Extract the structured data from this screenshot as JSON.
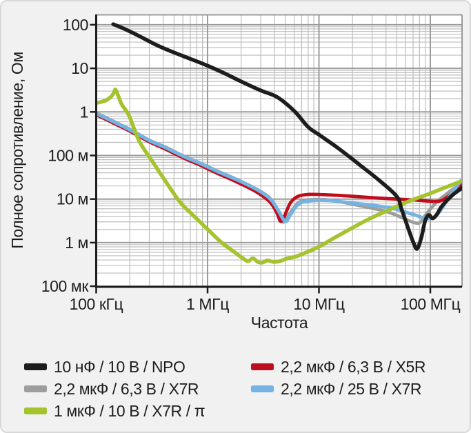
{
  "figure": {
    "background": "#f1f1f2",
    "border_color": "#d8d8d9",
    "plot_background": "#ffffff",
    "text_color": "#1d1d1b"
  },
  "chart_data": {
    "type": "line",
    "title": "",
    "xlabel": "Частота",
    "ylabel": "Полное сопротивление, Ом",
    "x_scale": "log",
    "y_scale": "log",
    "x_range_hz": [
      100000,
      193000000
    ],
    "y_range_ohm": [
      0.0001,
      170
    ],
    "grid": {
      "major_color": "#9b9b9b",
      "minor_color": "#bdbdbd",
      "major_width": 2,
      "minor_width": 1.2
    },
    "axis_color": "#1d1d1b",
    "x_ticks": [
      {
        "value": 100000,
        "label": "100 кГц"
      },
      {
        "value": 1000000,
        "label": "1 МГц"
      },
      {
        "value": 10000000,
        "label": "10 МГц"
      },
      {
        "value": 100000000,
        "label": "100 МГц"
      }
    ],
    "y_ticks": [
      {
        "value": 100,
        "label": "100"
      },
      {
        "value": 10,
        "label": "10"
      },
      {
        "value": 1,
        "label": "1"
      },
      {
        "value": 0.1,
        "label": "100 м"
      },
      {
        "value": 0.01,
        "label": "10 м"
      },
      {
        "value": 0.001,
        "label": "1 м"
      },
      {
        "value": 0.0001,
        "label": "100 мк"
      }
    ],
    "draw_order": [
      "x7r63",
      "x5r",
      "x7r25",
      "pi",
      "npo"
    ],
    "legend": {
      "columns": [
        [
          "npo",
          "x7r63",
          "pi"
        ],
        [
          "x5r",
          "x7r25"
        ]
      ]
    },
    "series": [
      {
        "id": "npo",
        "name": "10 нФ / 10 В / NPO",
        "color": "#1d1d1b",
        "stroke_px": 5.5,
        "points": [
          [
            142000,
            103
          ],
          [
            180000,
            80
          ],
          [
            240000,
            56
          ],
          [
            350000,
            34
          ],
          [
            500000,
            23
          ],
          [
            700000,
            16.5
          ],
          [
            1000000,
            11.5
          ],
          [
            1400000,
            7.8
          ],
          [
            2000000,
            5.0
          ],
          [
            3000000,
            3.1
          ],
          [
            4200000,
            2.2
          ],
          [
            6000000,
            1.05
          ],
          [
            8000000,
            0.45
          ],
          [
            10000000,
            0.3
          ],
          [
            15000000,
            0.145
          ],
          [
            23000000,
            0.062
          ],
          [
            35000000,
            0.0265
          ],
          [
            50000000,
            0.0115
          ],
          [
            55000000,
            0.006
          ],
          [
            63000000,
            0.0022
          ],
          [
            70000000,
            0.00105
          ],
          [
            76000000,
            0.00072
          ],
          [
            83000000,
            0.0013
          ],
          [
            90000000,
            0.0032
          ],
          [
            97000000,
            0.0043
          ],
          [
            105000000,
            0.0036
          ],
          [
            115000000,
            0.0045
          ],
          [
            125000000,
            0.0065
          ],
          [
            145000000,
            0.01
          ],
          [
            165000000,
            0.0135
          ],
          [
            193000000,
            0.018
          ]
        ]
      },
      {
        "id": "x5r",
        "name": "2,2 мкФ / 6,3 В / X5R",
        "color": "#c00d1e",
        "stroke_px": 4.7,
        "points": [
          [
            100000,
            0.86
          ],
          [
            150000,
            0.52
          ],
          [
            210000,
            0.34
          ],
          [
            300000,
            0.205
          ],
          [
            428000,
            0.136
          ],
          [
            600000,
            0.089
          ],
          [
            874000,
            0.0585
          ],
          [
            1250000,
            0.038
          ],
          [
            1790000,
            0.0253
          ],
          [
            2740000,
            0.0146
          ],
          [
            3640000,
            0.0085
          ],
          [
            4200000,
            0.0047
          ],
          [
            4500000,
            0.0031
          ],
          [
            4800000,
            0.0036
          ],
          [
            5200000,
            0.0058
          ],
          [
            5600000,
            0.0085
          ],
          [
            6450000,
            0.0115
          ],
          [
            8200000,
            0.0128
          ],
          [
            12000000,
            0.0125
          ],
          [
            20000000,
            0.0116
          ],
          [
            35000000,
            0.0105
          ],
          [
            60000000,
            0.0098
          ],
          [
            90000000,
            0.0091
          ],
          [
            110000000,
            0.0088
          ],
          [
            125000000,
            0.0092
          ],
          [
            145000000,
            0.0115
          ],
          [
            165000000,
            0.015
          ],
          [
            193000000,
            0.021
          ]
        ]
      },
      {
        "id": "x7r63",
        "name": "2,2 мкФ / 6,3 В / X7R",
        "color": "#9d9d9c",
        "stroke_px": 4.7,
        "points": [
          [
            100000,
            0.95
          ],
          [
            150000,
            0.575
          ],
          [
            210000,
            0.375
          ],
          [
            300000,
            0.225
          ],
          [
            428000,
            0.152
          ],
          [
            600000,
            0.099
          ],
          [
            874000,
            0.0655
          ],
          [
            1250000,
            0.043
          ],
          [
            1790000,
            0.029
          ],
          [
            2740000,
            0.017
          ],
          [
            3640000,
            0.0104
          ],
          [
            4300000,
            0.0052
          ],
          [
            4750000,
            0.003
          ],
          [
            5100000,
            0.0036
          ],
          [
            5600000,
            0.005
          ],
          [
            6500000,
            0.0082
          ],
          [
            8000000,
            0.0096
          ],
          [
            11000000,
            0.0098
          ],
          [
            15000000,
            0.0088
          ],
          [
            25000000,
            0.0068
          ],
          [
            40000000,
            0.0052
          ],
          [
            55000000,
            0.0038
          ],
          [
            68000000,
            0.003
          ],
          [
            80000000,
            0.00285
          ],
          [
            90000000,
            0.0042
          ],
          [
            105000000,
            0.0068
          ],
          [
            125000000,
            0.0105
          ],
          [
            150000000,
            0.015
          ],
          [
            193000000,
            0.024
          ]
        ]
      },
      {
        "id": "x7r25",
        "name": "2,2 мкФ / 25 В / X7R",
        "color": "#74b3e2",
        "stroke_px": 5,
        "points": [
          [
            100000,
            0.92
          ],
          [
            150000,
            0.56
          ],
          [
            210000,
            0.365
          ],
          [
            300000,
            0.22
          ],
          [
            428000,
            0.148
          ],
          [
            600000,
            0.097
          ],
          [
            874000,
            0.064
          ],
          [
            1250000,
            0.042
          ],
          [
            1790000,
            0.0285
          ],
          [
            2740000,
            0.0168
          ],
          [
            3640000,
            0.0102
          ],
          [
            4300000,
            0.0055
          ],
          [
            4800000,
            0.0034
          ],
          [
            5100000,
            0.0031
          ],
          [
            5500000,
            0.0042
          ],
          [
            6500000,
            0.0075
          ],
          [
            8000000,
            0.009
          ],
          [
            12000000,
            0.0093
          ],
          [
            20000000,
            0.0081
          ],
          [
            30000000,
            0.0072
          ],
          [
            45000000,
            0.0062
          ],
          [
            60000000,
            0.005
          ],
          [
            75000000,
            0.0042
          ],
          [
            90000000,
            0.0036
          ],
          [
            105000000,
            0.0037
          ],
          [
            120000000,
            0.005
          ],
          [
            140000000,
            0.009
          ],
          [
            160000000,
            0.015
          ],
          [
            193000000,
            0.0285
          ]
        ]
      },
      {
        "id": "pi",
        "name": "1 мкФ / 10 В / X7R / π",
        "color": "#a4c32f",
        "stroke_px": 5.5,
        "points": [
          [
            100000,
            1.6
          ],
          [
            120000,
            1.8
          ],
          [
            135000,
            2.2
          ],
          [
            143000,
            2.65
          ],
          [
            149000,
            3.25
          ],
          [
            158000,
            2.3
          ],
          [
            170000,
            1.47
          ],
          [
            197000,
            0.82
          ],
          [
            244000,
            0.211
          ],
          [
            323000,
            0.0705
          ],
          [
            428000,
            0.0236
          ],
          [
            567000,
            0.0085
          ],
          [
            752000,
            0.0041
          ],
          [
            997000,
            0.00205
          ],
          [
            1322000,
            0.00103
          ],
          [
            1753000,
            0.0006
          ],
          [
            2130000,
            0.000417
          ],
          [
            2320000,
            0.000375
          ],
          [
            2560000,
            0.000434
          ],
          [
            2830000,
            0.000361
          ],
          [
            3080000,
            0.000348
          ],
          [
            3470000,
            0.000389
          ],
          [
            3870000,
            0.000361
          ],
          [
            4450000,
            0.000375
          ],
          [
            5210000,
            0.000434
          ],
          [
            6280000,
            0.000483
          ],
          [
            8000000,
            0.000623
          ],
          [
            10000000,
            0.000804
          ],
          [
            13100000,
            0.0012
          ],
          [
            17400000,
            0.0018
          ],
          [
            23100000,
            0.00268
          ],
          [
            30700000,
            0.00388
          ],
          [
            40800000,
            0.00537
          ],
          [
            54200000,
            0.00744
          ],
          [
            72000000,
            0.00998
          ],
          [
            95700000,
            0.0129
          ],
          [
            127000000,
            0.0172
          ],
          [
            158000000,
            0.0214
          ],
          [
            190000000,
            0.0257
          ]
        ]
      }
    ]
  }
}
